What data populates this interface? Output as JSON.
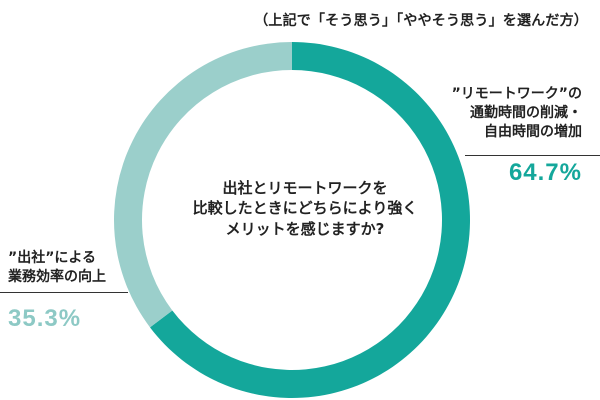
{
  "note": "（上記で「そう思う」「ややそう思う」を選んだ方）",
  "center_text": "出社とリモートワークを\n比較したときにどちらにより強く\nメリットを感じますか?",
  "chart_data": {
    "type": "pie",
    "title": "",
    "slices": [
      {
        "label": "”リモートワーク”の\n通勤時間の削減・\n自由時間の増加",
        "value": 64.7,
        "display": "64.7%",
        "color": "#14a79b"
      },
      {
        "label": "”出社”による\n業務効率の向上",
        "value": 35.3,
        "display": "35.3%",
        "color": "#9bcfcb"
      }
    ]
  }
}
